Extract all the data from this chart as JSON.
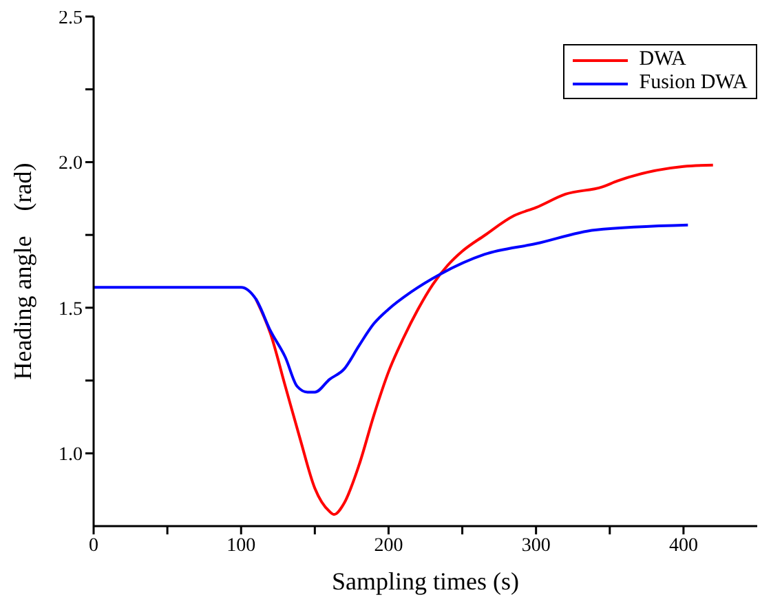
{
  "chart_data": {
    "type": "line",
    "xlabel": "Sampling times (s)",
    "ylabel": "Heading angle　(rad)",
    "xlim": [
      0,
      450
    ],
    "xticks": [
      0,
      {
        "value": 50,
        "label": null
      },
      100,
      {
        "value": 150,
        "label": null
      },
      200,
      {
        "value": 250,
        "label": null
      },
      300,
      {
        "value": 350,
        "label": null
      },
      400
    ],
    "ylim": [
      0.75,
      2.5
    ],
    "yticks": [
      {
        "value": 1.0,
        "label": "1.0"
      },
      {
        "value": 1.25,
        "label": null
      },
      1.5,
      {
        "value": 1.75,
        "label": null
      },
      {
        "value": 2.0,
        "label": "2.0"
      },
      {
        "value": 2.25,
        "label": null
      },
      2.5
    ],
    "grid": false,
    "legend": "top right",
    "marker": "none",
    "line_style": "solid",
    "series": [
      {
        "name": "DWA",
        "color": "#ff0000",
        "x": [
          110,
          120,
          130,
          140,
          150,
          160,
          163,
          170,
          180,
          190,
          200,
          210,
          220,
          230,
          240,
          250,
          265,
          285,
          300,
          320,
          345,
          355,
          400,
          420
        ],
        "values": [
          1.53,
          1.41,
          1.23,
          1.05,
          0.88,
          0.8,
          0.79,
          0.83,
          0.96,
          1.13,
          1.28,
          1.395,
          1.495,
          1.58,
          1.645,
          1.694,
          1.748,
          1.816,
          1.844,
          1.89,
          1.915,
          1.935,
          1.985,
          1.99
        ]
      },
      {
        "name": "Fusion DWA",
        "color": "#0000ff",
        "x": [
          0,
          100,
          110,
          120,
          130,
          138,
          145,
          150,
          160,
          170,
          180,
          190,
          200,
          215,
          235,
          265,
          300,
          340,
          403
        ],
        "values": [
          1.57,
          1.57,
          1.53,
          1.42,
          1.33,
          1.23,
          1.21,
          1.21,
          1.254,
          1.29,
          1.37,
          1.445,
          1.495,
          1.553,
          1.615,
          1.683,
          1.72,
          1.767,
          1.784
        ]
      }
    ]
  }
}
